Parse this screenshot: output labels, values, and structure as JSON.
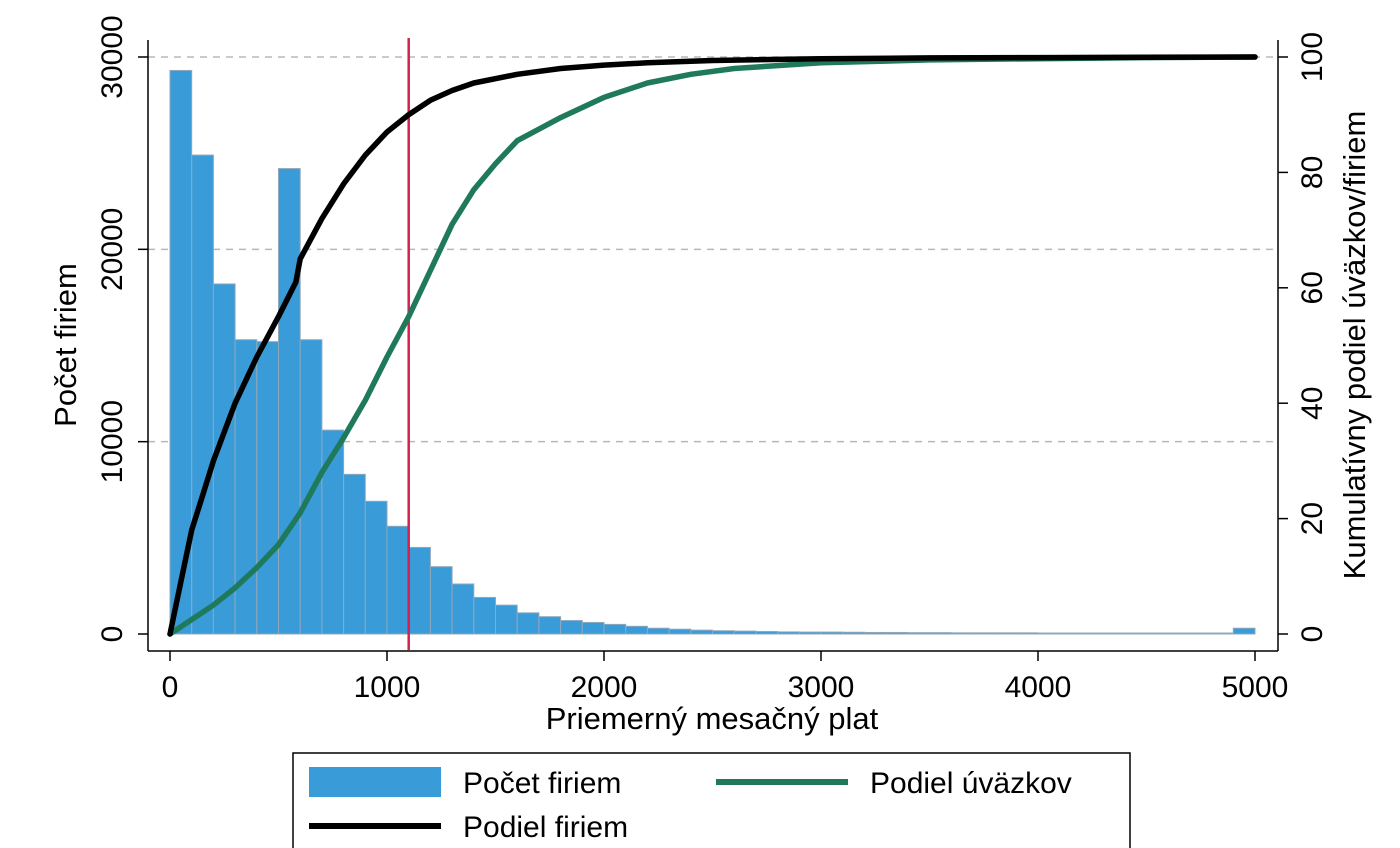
{
  "chart_data": {
    "type": "bar",
    "xlabel": "Priemerný mesačný plat",
    "ylabel_left": "Počet firiem",
    "ylabel_right": "Kumulatívny podiel úväzkov/firiem",
    "xlim": [
      0,
      5000
    ],
    "ylim_left": [
      0,
      30000
    ],
    "ylim_right": [
      0,
      100
    ],
    "x_ticks": [
      "0",
      "1000",
      "2000",
      "3000",
      "4000",
      "5000"
    ],
    "y_ticks_left": [
      "0",
      "10000",
      "20000",
      "30000"
    ],
    "y_ticks_right": [
      "0",
      "20",
      "40",
      "60",
      "80",
      "100"
    ],
    "grid": "horizontal dashed",
    "reference_line_x": 1100,
    "histogram": {
      "name": "Počet firiem",
      "color": "#3a9bd9",
      "bin_width": 100,
      "bin_starts": [
        0,
        100,
        200,
        300,
        400,
        500,
        600,
        700,
        800,
        900,
        1000,
        1100,
        1200,
        1300,
        1400,
        1500,
        1600,
        1700,
        1800,
        1900,
        2000,
        2100,
        2200,
        2300,
        2400,
        2500,
        2600,
        2700,
        2800,
        2900,
        3000,
        3100,
        3200,
        3300,
        3400,
        3500,
        3600,
        3700,
        3800,
        3900,
        4000,
        4100,
        4200,
        4300,
        4400,
        4500,
        4600,
        4700,
        4800,
        4900
      ],
      "values": [
        29300,
        24900,
        18200,
        15300,
        15200,
        24200,
        15300,
        10600,
        8300,
        6900,
        5600,
        4500,
        3500,
        2600,
        1900,
        1500,
        1100,
        900,
        700,
        600,
        500,
        400,
        300,
        250,
        200,
        170,
        150,
        130,
        110,
        100,
        100,
        90,
        80,
        80,
        70,
        70,
        60,
        60,
        60,
        60,
        50,
        50,
        50,
        50,
        50,
        50,
        50,
        50,
        50,
        300
      ]
    },
    "series": [
      {
        "name": "Podiel firiem",
        "color": "#000000",
        "axis": "right",
        "x": [
          0,
          50,
          100,
          150,
          200,
          300,
          400,
          500,
          580,
          600,
          700,
          800,
          900,
          1000,
          1100,
          1200,
          1300,
          1400,
          1600,
          1800,
          2000,
          2200,
          2500,
          3000,
          3500,
          4000,
          5000
        ],
        "y": [
          0,
          9,
          18,
          24,
          30,
          40,
          48,
          55,
          61,
          65,
          72,
          78,
          83,
          87,
          90,
          92.5,
          94.2,
          95.5,
          97,
          98,
          98.6,
          99,
          99.4,
          99.7,
          99.85,
          99.9,
          100
        ]
      },
      {
        "name": "Podiel úväzkov",
        "color": "#1f7a5c",
        "axis": "right",
        "x": [
          0,
          100,
          200,
          300,
          400,
          500,
          600,
          700,
          800,
          900,
          1000,
          1100,
          1200,
          1300,
          1400,
          1500,
          1600,
          1800,
          2000,
          2200,
          2400,
          2600,
          3000,
          3500,
          4000,
          4500,
          5000
        ],
        "y": [
          0,
          2.5,
          5,
          8,
          11.5,
          15.5,
          21,
          28,
          34,
          40.5,
          48,
          55,
          63,
          71,
          77,
          81.5,
          85.5,
          89.5,
          93,
          95.5,
          97,
          98,
          99,
          99.5,
          99.7,
          99.9,
          100
        ]
      }
    ],
    "legend": {
      "position": "bottom",
      "items": [
        "Počet firiem",
        "Podiel úväzkov",
        "Podiel firiem"
      ]
    }
  }
}
